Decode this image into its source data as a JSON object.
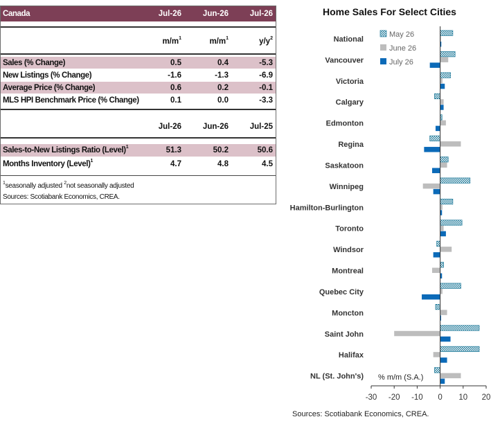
{
  "table": {
    "region": "Canada",
    "header_cols": [
      "Jul-26",
      "Jun-26",
      "Jul-26"
    ],
    "unit_cols": [
      {
        "base": "m/m",
        "sup": "1"
      },
      {
        "base": "m/m",
        "sup": "1"
      },
      {
        "base": "y/y",
        "sup": "2"
      }
    ],
    "rows": [
      {
        "label": "Sales (% Change)",
        "v1": "0.5",
        "v2": "0.4",
        "v3": "-5.3"
      },
      {
        "label": "New Listings (% Change)",
        "v1": "-1.6",
        "v2": "-1.3",
        "v3": "-6.9"
      },
      {
        "label": "Average Price (% Change)",
        "v1": "0.6",
        "v2": "0.2",
        "v3": "-0.1"
      },
      {
        "label": "MLS HPI Benchmark Price (% Change)",
        "v1": "0.1",
        "v2": "0.0",
        "v3": "-3.3"
      }
    ],
    "second_header_cols": [
      "Jul-26",
      "Jun-26",
      "Jul-25"
    ],
    "rows2": [
      {
        "label": "Sales-to-New Listings Ratio (Level)",
        "sup": "1",
        "v1": "51.3",
        "v2": "50.2",
        "v3": "50.6"
      },
      {
        "label": "Months Inventory (Level)",
        "sup": "1",
        "v1": "4.7",
        "v2": "4.8",
        "v3": "4.5"
      }
    ],
    "footnote": {
      "sup1": "1",
      "text1": "seasonally adjusted",
      "sup2": "2",
      "text2": "not seasonally adjusted"
    },
    "sources": "Sources: Scotiabank Economics, CREA."
  },
  "chart_data": {
    "type": "bar",
    "orientation": "horizontal",
    "title": "Home Sales For Select Cities",
    "categories": [
      "National",
      "Vancouver",
      "Victoria",
      "Calgary",
      "Edmonton",
      "Regina",
      "Saskatoon",
      "Winnipeg",
      "Hamilton-Burlington",
      "Toronto",
      "Windsor",
      "Montreal",
      "Quebec City",
      "Moncton",
      "Saint John",
      "Halifax",
      "NL (St. John's)"
    ],
    "series": [
      {
        "name": "May 26",
        "color": "#ffffff",
        "pattern": "dotted-teal",
        "values": [
          5.5,
          6.5,
          4.5,
          -2.5,
          0.8,
          -4.5,
          3.5,
          13.0,
          5.5,
          9.5,
          -1.5,
          1.5,
          9.0,
          -2.0,
          17.0,
          17.0,
          -2.5
        ]
      },
      {
        "name": "June 26",
        "color": "#bdbdbd",
        "values": [
          0.4,
          3.5,
          1.0,
          1.5,
          2.5,
          9.0,
          3.0,
          -7.5,
          1.0,
          1.5,
          5.0,
          -3.5,
          1.0,
          3.0,
          -20.0,
          -3.0,
          9.0
        ]
      },
      {
        "name": "July 26",
        "color": "#0b6ab8",
        "values": [
          0.5,
          -4.5,
          2.0,
          1.5,
          -2.0,
          -7.0,
          -3.5,
          -3.0,
          0.8,
          2.5,
          -3.0,
          0.8,
          -8.0,
          0.4,
          4.5,
          3.0,
          2.0
        ]
      }
    ],
    "xlim": [
      -30,
      20
    ],
    "xticks": [
      -30,
      -20,
      -10,
      0,
      10,
      20
    ],
    "unit_label": "% m/m (S.A.)",
    "legend_position": "top-right",
    "grid": false
  },
  "chart_sources": "Sources: Scotiabank Economics, CREA."
}
